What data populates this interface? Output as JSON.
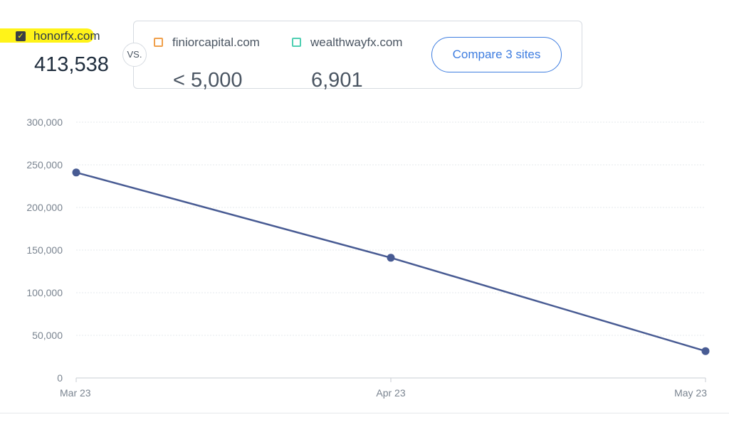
{
  "main_site": {
    "name": "honorfx.com",
    "value": "413,538",
    "checked": true,
    "highlight_color": "#fff200"
  },
  "vs_label": "VS.",
  "compare_sites": [
    {
      "name": "finiorcapital.com",
      "value": "< 5,000",
      "color": "#f0a04b"
    },
    {
      "name": "wealthwayfx.com",
      "value": "6,901",
      "color": "#4fcfb2"
    }
  ],
  "compare_button": {
    "label": "Compare 3 sites"
  },
  "chart_data": {
    "type": "line",
    "x": [
      "Mar 23",
      "Apr 23",
      "May 23"
    ],
    "series": [
      {
        "values": [
          241000,
          141000,
          31500
        ],
        "color": "#485b93"
      }
    ],
    "y_ticks": [
      0,
      50000,
      100000,
      150000,
      200000,
      250000,
      300000
    ],
    "y_tick_labels": [
      "0",
      "50,000",
      "100,000",
      "150,000",
      "200,000",
      "250,000",
      "300,000"
    ],
    "ylim": [
      0,
      300000
    ],
    "grid": true,
    "title": "",
    "xlabel": "",
    "ylabel": ""
  }
}
